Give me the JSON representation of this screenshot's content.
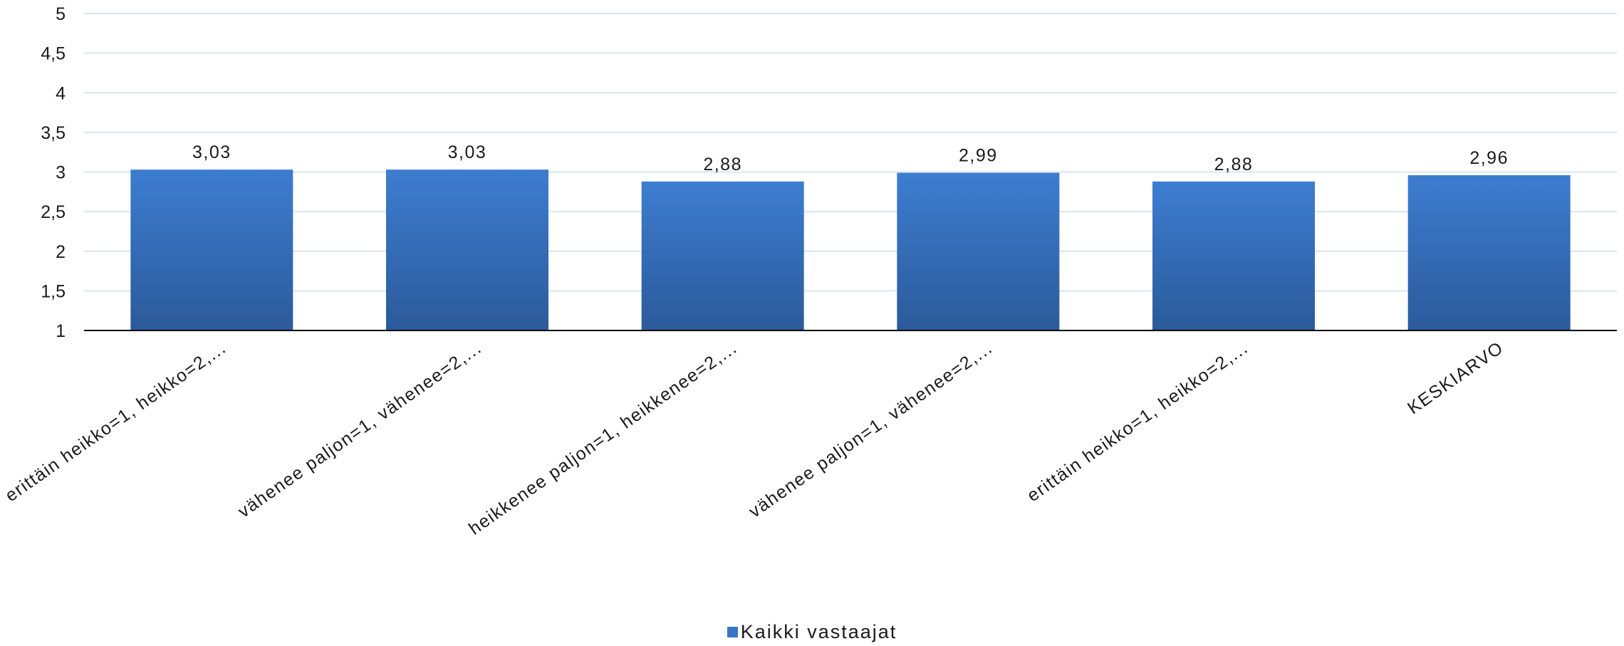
{
  "chart_data": {
    "type": "bar",
    "categories": [
      "erittäin heikko=1, heikko=2,...",
      "vähenee paljon=1, vähenee=2,...",
      "heikkenee paljon=1, heikkenee=2,...",
      "vähenee paljon=1, vähenee=2,...",
      "erittäin heikko=1, heikko=2,...",
      "KESKIARVO"
    ],
    "series": [
      {
        "name": "Kaikki vastaajat",
        "values": [
          3.03,
          3.03,
          2.88,
          2.99,
          2.88,
          2.96
        ]
      }
    ],
    "data_labels": [
      "3,03",
      "3,03",
      "2,88",
      "2,99",
      "2,88",
      "2,96"
    ],
    "yticks": [
      "1",
      "1,5",
      "2",
      "2,5",
      "3",
      "3,5",
      "4",
      "4,5",
      "5"
    ],
    "ylim": [
      1,
      5
    ],
    "grid": true,
    "legend_position": "bottom",
    "colors": {
      "bar_top": "#3d7dd0",
      "bar_bottom": "#2b5a9b",
      "grid": "#d9e4ef",
      "axis": "#000000"
    }
  }
}
